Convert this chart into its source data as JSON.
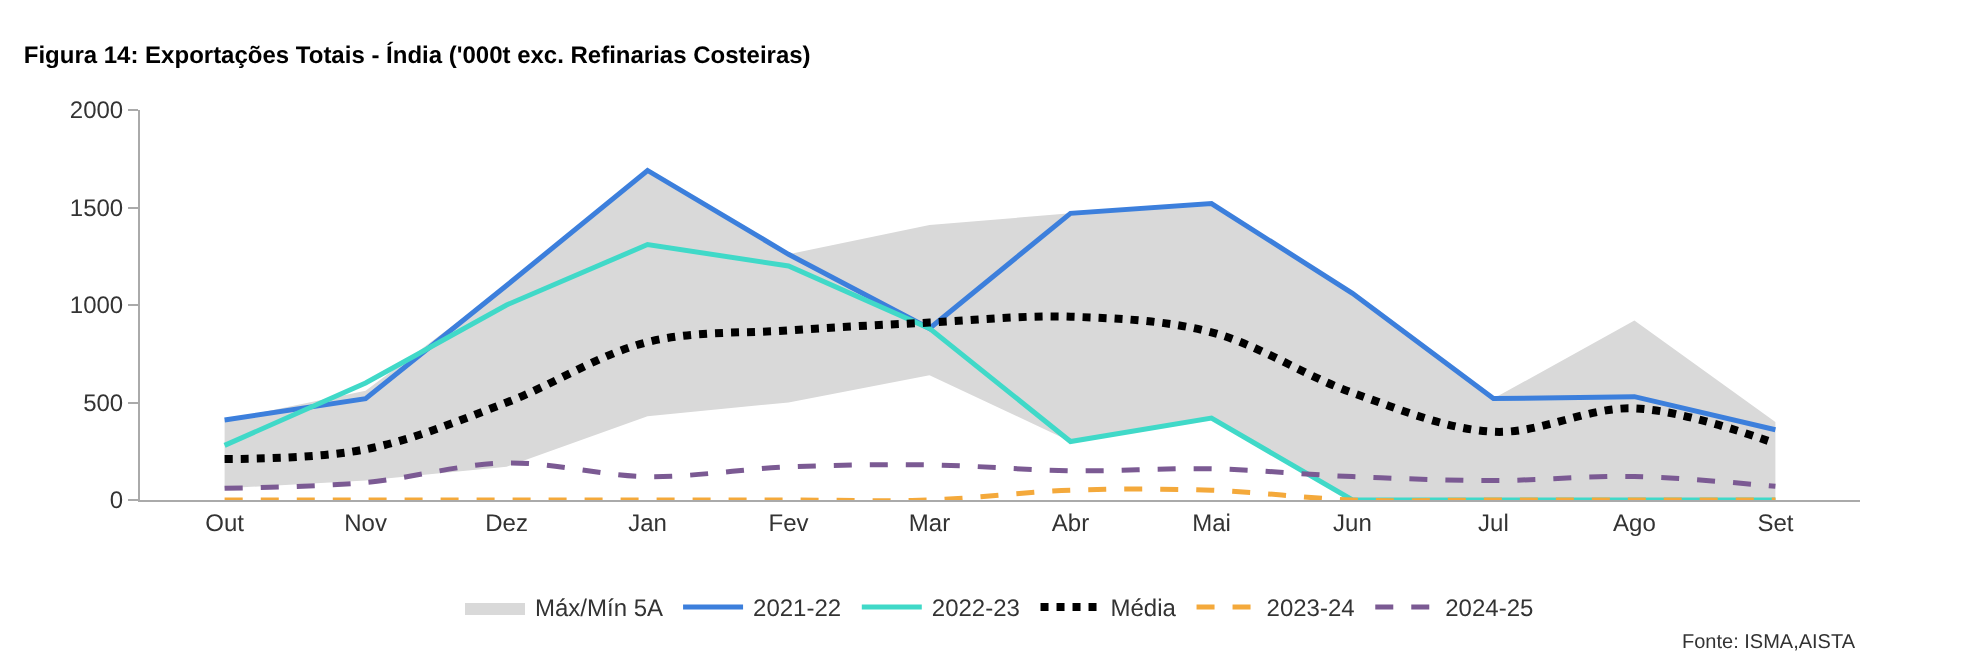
{
  "chart_data": {
    "type": "line",
    "title": "Figura 14: Exportações Totais - Índia ('000t exc. Refinarias Costeiras)",
    "categories": [
      "Out",
      "Nov",
      "Dez",
      "Jan",
      "Fev",
      "Mar",
      "Abr",
      "Mai",
      "Jun",
      "Jul",
      "Ago",
      "Set"
    ],
    "series": [
      {
        "name": "Máx/Mín 5A",
        "type": "area",
        "color": "#d9d9d9",
        "lower": [
          60,
          100,
          170,
          430,
          500,
          640,
          300,
          420,
          0,
          0,
          0,
          0
        ],
        "upper": [
          410,
          560,
          1100,
          1690,
          1260,
          1410,
          1470,
          1520,
          1060,
          520,
          920,
          400
        ],
        "values": [
          null,
          null,
          null,
          null,
          null,
          null,
          null,
          null,
          null,
          null,
          null,
          null
        ]
      },
      {
        "name": "2021-22",
        "color": "#3c7fdc",
        "line_style": "solid",
        "values": [
          410,
          520,
          1100,
          1690,
          1260,
          880,
          1470,
          1520,
          1060,
          520,
          530,
          360
        ]
      },
      {
        "name": "2022-23",
        "color": "#40d9c8",
        "line_style": "solid",
        "values": [
          280,
          600,
          1000,
          1310,
          1200,
          880,
          300,
          420,
          0,
          0,
          0,
          0
        ]
      },
      {
        "name": "Média",
        "color": "#000000",
        "line_style": "dotted",
        "values": [
          210,
          260,
          500,
          810,
          870,
          910,
          940,
          860,
          550,
          350,
          470,
          290
        ]
      },
      {
        "name": "2023-24",
        "color": "#f4a93b",
        "line_style": "dashed",
        "values": [
          0,
          0,
          0,
          0,
          0,
          0,
          50,
          50,
          0,
          0,
          0,
          0
        ]
      },
      {
        "name": "2024-25",
        "color": "#7b5a93",
        "line_style": "dashed",
        "values": [
          60,
          90,
          190,
          120,
          170,
          180,
          150,
          160,
          120,
          100,
          120,
          70
        ]
      }
    ],
    "ylim": [
      0,
      2000
    ],
    "yticks": [
      0,
      500,
      1000,
      1500,
      2000
    ],
    "grid": false,
    "legend": "bottom",
    "annotations": [
      "Fonte: ISMA,AISTA"
    ]
  }
}
